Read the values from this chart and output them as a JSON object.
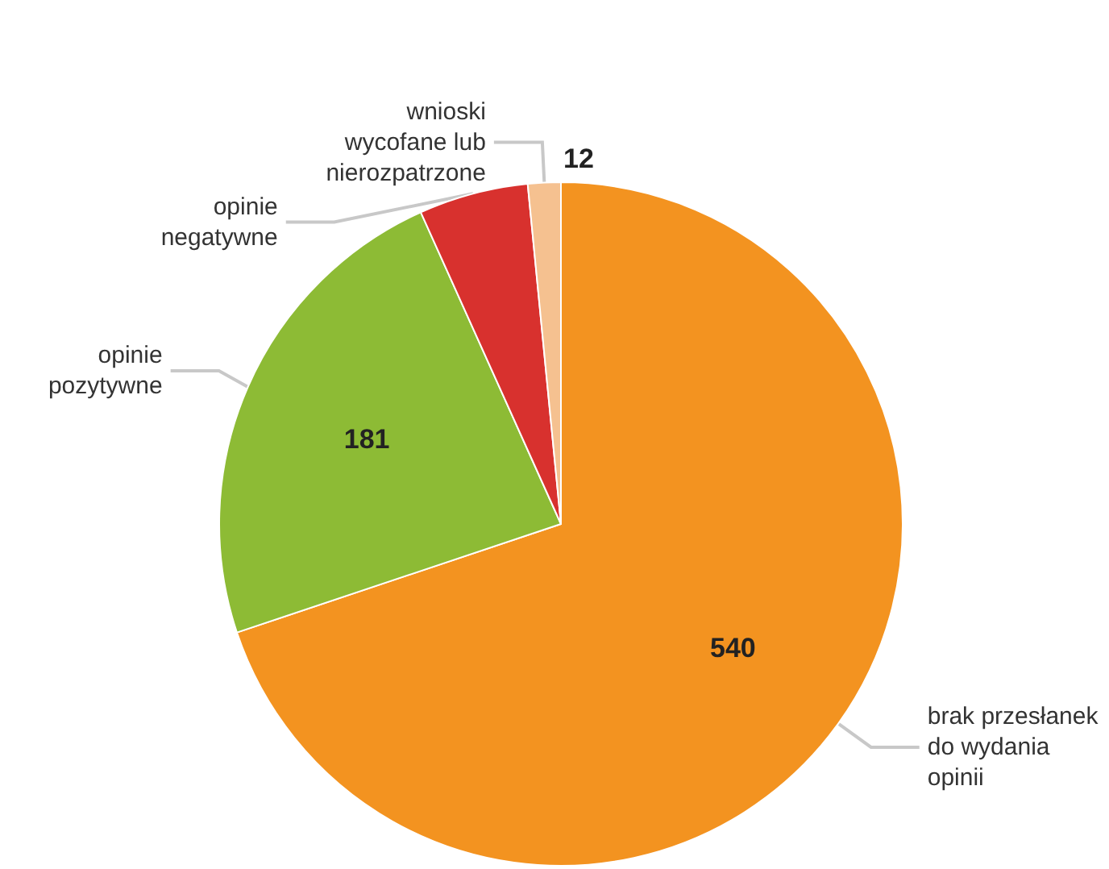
{
  "chart_data": {
    "type": "pie",
    "categories": [
      "brak przesłanek\ndo wydania\nopinii",
      "opinie\npozytywne",
      "opinie\nnegatywne",
      "wnioski\nwycofane lub\nnierozpatrzone"
    ],
    "values": [
      540,
      181,
      40,
      12
    ],
    "colors": [
      "#f39320",
      "#8dbb35",
      "#d8312e",
      "#f5c190"
    ],
    "value_labels": [
      "540",
      "181",
      null,
      "12"
    ]
  }
}
